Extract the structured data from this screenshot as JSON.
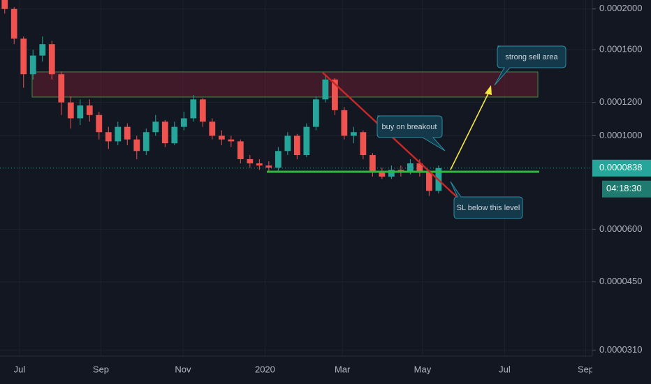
{
  "chart_data": {
    "type": "candlestick",
    "log_scale": true,
    "grid": true,
    "up_color": "#26a69a",
    "down_color": "#ef5350",
    "xlim": [
      0,
      62.8
    ],
    "xticks": [
      {
        "value": 2.07,
        "label": "Jul"
      },
      {
        "value": 10.7,
        "label": "Sep"
      },
      {
        "value": 19.4,
        "label": "Nov"
      },
      {
        "value": 28.1,
        "label": "2020"
      },
      {
        "value": 36.3,
        "label": "Mar"
      },
      {
        "value": 44.8,
        "label": "May"
      },
      {
        "value": 53.5,
        "label": "Jul"
      },
      {
        "value": 62.1,
        "label": "Sep"
      }
    ],
    "ylim": [
      3e-05,
      0.00021
    ],
    "yticks": [
      {
        "value": 0.0002,
        "label": "0.0002000"
      },
      {
        "value": 0.00016,
        "label": "0.0001600"
      },
      {
        "value": 0.00012,
        "label": "0.0001200"
      },
      {
        "value": 0.0001,
        "label": "0.0001000"
      },
      {
        "value": 6e-05,
        "label": "0.0000600"
      },
      {
        "value": 4.5e-05,
        "label": "0.0000450"
      },
      {
        "value": 3.1e-05,
        "label": "0.0000310"
      }
    ],
    "x": [
      0.5,
      1.5,
      2.5,
      3.5,
      4.5,
      5.5,
      6.5,
      7.5,
      8.5,
      9.5,
      10.5,
      11.5,
      12.5,
      13.5,
      14.5,
      15.5,
      16.5,
      17.5,
      18.5,
      19.5,
      20.5,
      21.5,
      22.5,
      23.5,
      24.5,
      25.5,
      26.5,
      27.5,
      28.5,
      29.5,
      30.5,
      31.5,
      32.5,
      33.5,
      34.5,
      35.5,
      36.5,
      37.5,
      38.5,
      39.5,
      40.5,
      41.5,
      42.5,
      43.5,
      44.5,
      45.5,
      46.5
    ],
    "open": [
      0.00021,
      0.0002,
      0.00017,
      0.00014,
      0.000155,
      0.000165,
      0.00014,
      0.00012,
      0.00011,
      0.000118,
      0.000112,
      0.000102,
      9.7e-05,
      0.000105,
      9.8e-05,
      9.2e-05,
      0.000102,
      0.000108,
      9.6e-05,
      0.000105,
      0.00011,
      0.000122,
      0.000108,
      0.0001,
      9.8e-05,
      9.7e-05,
      8.8e-05,
      8.6e-05,
      8.5e-05,
      8.4e-05,
      9.2e-05,
      0.0001,
      9e-05,
      0.000105,
      0.000122,
      0.000136,
      0.000115,
      0.0001,
      0.000102,
      9e-05,
      8.2e-05,
      8e-05,
      8.3e-05,
      8.2e-05,
      8.6e-05,
      8.2e-05,
      7.4e-05
    ],
    "high": [
      0.00021,
      0.000202,
      0.000172,
      0.00016,
      0.000172,
      0.000168,
      0.000142,
      0.000124,
      0.000122,
      0.000122,
      0.000114,
      0.000105,
      0.000108,
      0.000107,
      0.0001,
      0.000104,
      0.000112,
      0.000109,
      0.000108,
      0.000114,
      0.000125,
      0.000123,
      0.00011,
      0.000103,
      0.0001,
      9.8e-05,
      9e-05,
      8.8e-05,
      8.7e-05,
      9.4e-05,
      0.000102,
      0.000101,
      0.000107,
      0.000124,
      0.00014,
      0.000137,
      0.000117,
      0.000105,
      0.000103,
      9.1e-05,
      8.4e-05,
      8.5e-05,
      8.5e-05,
      8.8e-05,
      8.8e-05,
      8.3e-05,
      8.5e-05
    ],
    "low": [
      0.000195,
      0.000165,
      0.00013,
      0.000136,
      0.00015,
      0.000136,
      0.000112,
      0.000104,
      0.000106,
      0.000108,
      9.8e-05,
      9.3e-05,
      9.5e-05,
      9.5e-05,
      8.8e-05,
      9e-05,
      0.0001,
      9.4e-05,
      9.5e-05,
      0.000103,
      0.000108,
      0.000105,
      9.8e-05,
      9.5e-05,
      9.4e-05,
      8.6e-05,
      8.4e-05,
      8.3e-05,
      8.2e-05,
      8.2e-05,
      9e-05,
      8.8e-05,
      8.9e-05,
      0.000103,
      0.00012,
      0.000112,
      9.8e-05,
      9.6e-05,
      8.8e-05,
      8e-05,
      7.9e-05,
      7.9e-05,
      8e-05,
      8.1e-05,
      8e-05,
      7.2e-05,
      7.3e-05
    ],
    "close": [
      0.0002,
      0.00017,
      0.00014,
      0.000155,
      0.000165,
      0.00014,
      0.00012,
      0.00011,
      0.000118,
      0.000112,
      0.000102,
      9.7e-05,
      0.000105,
      9.8e-05,
      9.2e-05,
      0.000102,
      0.000108,
      9.6e-05,
      0.000105,
      0.00011,
      0.000122,
      0.000108,
      0.0001,
      9.8e-05,
      9.7e-05,
      8.8e-05,
      8.6e-05,
      8.5e-05,
      8.4e-05,
      9.2e-05,
      0.0001,
      9e-05,
      0.000105,
      0.000122,
      0.000136,
      0.000115,
      0.0001,
      0.000102,
      9e-05,
      8.2e-05,
      8e-05,
      8.3e-05,
      8.2e-05,
      8.6e-05,
      8.2e-05,
      7.4e-05,
      8.38e-05
    ],
    "last_price": 8.38e-05,
    "countdown": "04:18:30",
    "annotations": [
      "strong sell area",
      "buy on breakout",
      "SL below this level"
    ]
  }
}
